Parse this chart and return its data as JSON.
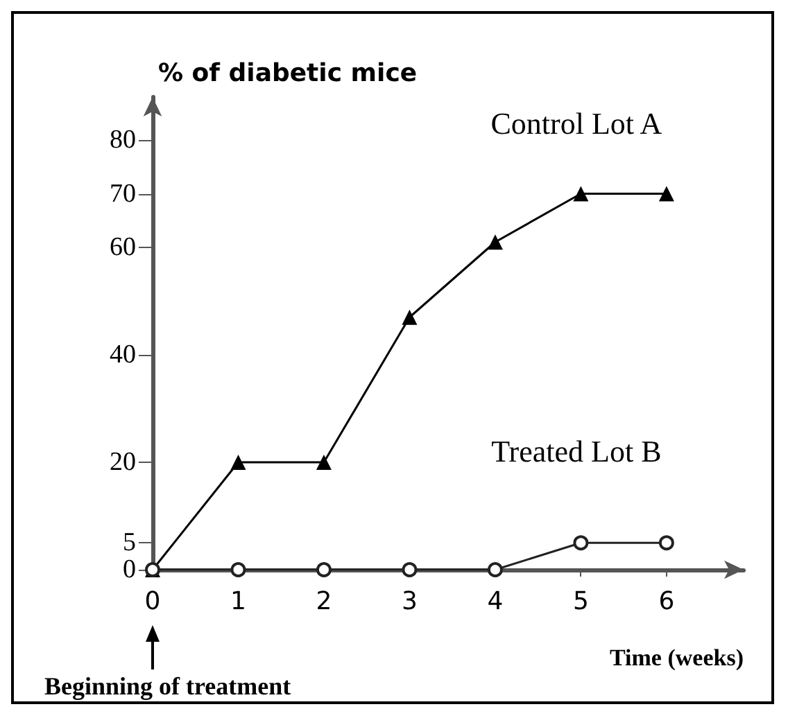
{
  "chart_data": {
    "type": "line",
    "ylabel": "% of diabetic mice",
    "xlabel": "Time (weeks)",
    "x": [
      0,
      1,
      2,
      3,
      4,
      5,
      6
    ],
    "series": [
      {
        "name": "Control Lot A",
        "color": "#000000",
        "marker": "triangle",
        "values": [
          0,
          20,
          20,
          47,
          61,
          70,
          70
        ]
      },
      {
        "name": "Treated Lot B",
        "color": "#222222",
        "marker": "circle",
        "values": [
          0,
          0,
          0,
          0,
          0,
          5,
          5
        ]
      }
    ],
    "xlim": [
      0,
      6.9
    ],
    "xticks": [
      0,
      1,
      2,
      3,
      4,
      5,
      6
    ],
    "ylim": [
      0,
      88
    ],
    "yticks": [
      0,
      5,
      20,
      40,
      60,
      70,
      80
    ],
    "annotations": [
      "Beginning of treatment"
    ],
    "grid": false,
    "legend": false,
    "line_style": "solid"
  }
}
